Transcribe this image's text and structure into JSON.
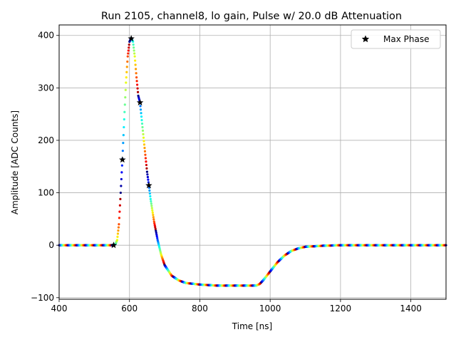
{
  "chart_data": {
    "type": "scatter",
    "title": "Run 2105, channel8, lo gain, Pulse w/ 20.0 dB Attenuation",
    "xlabel": "Time [ns]",
    "ylabel": "Amplitude [ADC Counts]",
    "xlim": [
      400,
      1500
    ],
    "ylim": [
      -103,
      420
    ],
    "xticks": [
      400,
      600,
      800,
      1000,
      1200,
      1400
    ],
    "yticks": [
      -100,
      0,
      100,
      200,
      300,
      400
    ],
    "grid": true,
    "legend": {
      "placement": "top-right",
      "entries": [
        "Max Phase"
      ]
    },
    "colormap": "jet",
    "pulse_points": [
      [
        400,
        0
      ],
      [
        550,
        0
      ],
      [
        560,
        2
      ],
      [
        565,
        10
      ],
      [
        570,
        40
      ],
      [
        575,
        100
      ],
      [
        580,
        165
      ],
      [
        585,
        240
      ],
      [
        590,
        310
      ],
      [
        595,
        360
      ],
      [
        600,
        388
      ],
      [
        605,
        395
      ],
      [
        610,
        388
      ],
      [
        615,
        360
      ],
      [
        620,
        320
      ],
      [
        625,
        285
      ],
      [
        630,
        272
      ],
      [
        640,
        205
      ],
      [
        650,
        140
      ],
      [
        655,
        115
      ],
      [
        660,
        88
      ],
      [
        670,
        45
      ],
      [
        680,
        10
      ],
      [
        690,
        -18
      ],
      [
        700,
        -38
      ],
      [
        720,
        -58
      ],
      [
        740,
        -67
      ],
      [
        760,
        -72
      ],
      [
        800,
        -75
      ],
      [
        850,
        -77
      ],
      [
        900,
        -77
      ],
      [
        960,
        -77
      ],
      [
        970,
        -74
      ],
      [
        980,
        -67
      ],
      [
        1000,
        -50
      ],
      [
        1020,
        -33
      ],
      [
        1040,
        -20
      ],
      [
        1060,
        -11
      ],
      [
        1080,
        -6
      ],
      [
        1100,
        -3
      ],
      [
        1150,
        -1
      ],
      [
        1200,
        0
      ],
      [
        1500,
        0
      ]
    ],
    "max_phase_points": [
      [
        555,
        0
      ],
      [
        580,
        163
      ],
      [
        605,
        394
      ],
      [
        630,
        272
      ],
      [
        655,
        114
      ]
    ]
  }
}
